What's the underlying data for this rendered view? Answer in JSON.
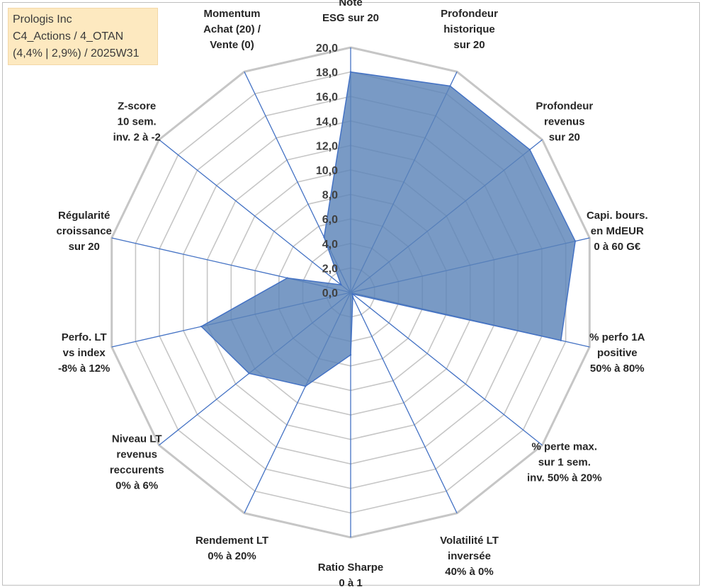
{
  "info_box": {
    "line1": "Prologis Inc",
    "line2": "C4_Actions / 4_OTAN",
    "line3": "(4,4% | 2,9%) / 2025W31"
  },
  "chart_data": {
    "type": "radar",
    "title": "",
    "rmin": 0,
    "rmax": 20,
    "tick_step": 2,
    "tick_labels": [
      "0,0",
      "2,0",
      "4,0",
      "6,0",
      "8,0",
      "10,0",
      "12,0",
      "14,0",
      "16,0",
      "18,0",
      "20,0"
    ],
    "grid": true,
    "categories": [
      [
        "Note",
        "ESG sur 20"
      ],
      [
        "Profondeur",
        "historique",
        "sur 20"
      ],
      [
        "Profondeur",
        "revenus",
        "sur 20"
      ],
      [
        "Capi. bours.",
        "en MdEUR",
        "0 à 60 G€"
      ],
      [
        "% perfo 1A",
        "positive",
        "50% à 80%"
      ],
      [
        "% perte max.",
        "sur 1 sem.",
        "inv. 50% à 20%"
      ],
      [
        "Volatilité LT",
        "inversée",
        "40% à 0%"
      ],
      [
        "Ratio Sharpe",
        "0 à 1"
      ],
      [
        "Rendement LT",
        "0% à 20%"
      ],
      [
        "Niveau LT",
        "revenus",
        "reccurents",
        "0% à 6%"
      ],
      [
        "Perfo. LT",
        "vs index",
        "-8% à 12%"
      ],
      [
        "Régularité",
        "croissance",
        "sur 20"
      ],
      [
        "Z-score",
        "10 sem.",
        "inv. 2 à -2"
      ],
      [
        "Momentum",
        "Achat (20) /",
        "Vente (0)"
      ]
    ],
    "values": [
      18.0,
      18.7,
      18.7,
      18.8,
      17.6,
      0.2,
      0.4,
      5.1,
      8.5,
      10.6,
      12.5,
      5.3,
      1.0,
      5.0
    ],
    "colors": {
      "fill": "#5b84b8",
      "stroke": "#4472c4",
      "spoke": "#4472c4",
      "grid": "#c6c6c6"
    }
  }
}
